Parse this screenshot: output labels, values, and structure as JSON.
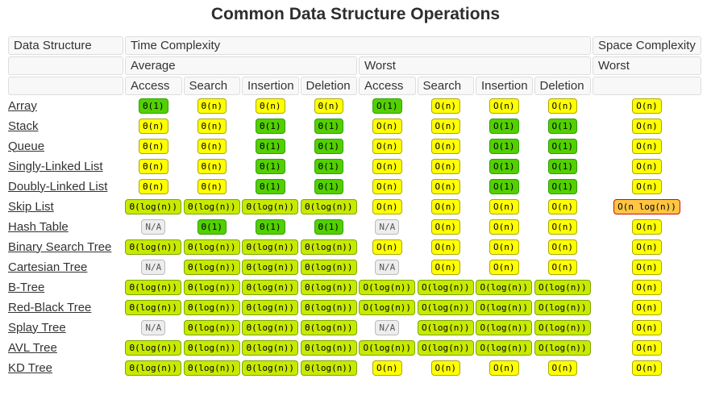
{
  "title": "Common Data Structure Operations",
  "header": {
    "data_structure": "Data Structure",
    "time_complexity": "Time Complexity",
    "space_complexity": "Space Complexity",
    "average": "Average",
    "worst": "Worst",
    "space_worst": "Worst",
    "ops": [
      "Access",
      "Search",
      "Insertion",
      "Deletion"
    ]
  },
  "badge_styles": {
    "green": {
      "bg": "#53d000",
      "border": "#2f9e00",
      "text_color": "#000000"
    },
    "yellowgreen": {
      "bg": "#c8ea00",
      "border": "#79a700",
      "text_color": "#000000"
    },
    "yellow": {
      "bg": "#ffff00",
      "border": "#aaaa00",
      "text_color": "#000000"
    },
    "orange": {
      "bg": "#ffc543",
      "border": "#cc1000",
      "text_color": "#000000"
    },
    "na": {
      "bg": "#ededed",
      "border": "#bbbbbb",
      "text_color": "#555555"
    }
  },
  "rows": [
    {
      "label": "Array",
      "cells": [
        {
          "text": "Θ(1)",
          "level": "green"
        },
        {
          "text": "Θ(n)",
          "level": "yellow"
        },
        {
          "text": "Θ(n)",
          "level": "yellow"
        },
        {
          "text": "Θ(n)",
          "level": "yellow"
        },
        {
          "text": "O(1)",
          "level": "green"
        },
        {
          "text": "O(n)",
          "level": "yellow"
        },
        {
          "text": "O(n)",
          "level": "yellow"
        },
        {
          "text": "O(n)",
          "level": "yellow"
        },
        {
          "text": "O(n)",
          "level": "yellow"
        }
      ]
    },
    {
      "label": "Stack",
      "cells": [
        {
          "text": "Θ(n)",
          "level": "yellow"
        },
        {
          "text": "Θ(n)",
          "level": "yellow"
        },
        {
          "text": "Θ(1)",
          "level": "green"
        },
        {
          "text": "Θ(1)",
          "level": "green"
        },
        {
          "text": "O(n)",
          "level": "yellow"
        },
        {
          "text": "O(n)",
          "level": "yellow"
        },
        {
          "text": "O(1)",
          "level": "green"
        },
        {
          "text": "O(1)",
          "level": "green"
        },
        {
          "text": "O(n)",
          "level": "yellow"
        }
      ]
    },
    {
      "label": "Queue",
      "cells": [
        {
          "text": "Θ(n)",
          "level": "yellow"
        },
        {
          "text": "Θ(n)",
          "level": "yellow"
        },
        {
          "text": "Θ(1)",
          "level": "green"
        },
        {
          "text": "Θ(1)",
          "level": "green"
        },
        {
          "text": "O(n)",
          "level": "yellow"
        },
        {
          "text": "O(n)",
          "level": "yellow"
        },
        {
          "text": "O(1)",
          "level": "green"
        },
        {
          "text": "O(1)",
          "level": "green"
        },
        {
          "text": "O(n)",
          "level": "yellow"
        }
      ]
    },
    {
      "label": "Singly-Linked List",
      "cells": [
        {
          "text": "Θ(n)",
          "level": "yellow"
        },
        {
          "text": "Θ(n)",
          "level": "yellow"
        },
        {
          "text": "Θ(1)",
          "level": "green"
        },
        {
          "text": "Θ(1)",
          "level": "green"
        },
        {
          "text": "O(n)",
          "level": "yellow"
        },
        {
          "text": "O(n)",
          "level": "yellow"
        },
        {
          "text": "O(1)",
          "level": "green"
        },
        {
          "text": "O(1)",
          "level": "green"
        },
        {
          "text": "O(n)",
          "level": "yellow"
        }
      ]
    },
    {
      "label": "Doubly-Linked List",
      "cells": [
        {
          "text": "Θ(n)",
          "level": "yellow"
        },
        {
          "text": "Θ(n)",
          "level": "yellow"
        },
        {
          "text": "Θ(1)",
          "level": "green"
        },
        {
          "text": "Θ(1)",
          "level": "green"
        },
        {
          "text": "O(n)",
          "level": "yellow"
        },
        {
          "text": "O(n)",
          "level": "yellow"
        },
        {
          "text": "O(1)",
          "level": "green"
        },
        {
          "text": "O(1)",
          "level": "green"
        },
        {
          "text": "O(n)",
          "level": "yellow"
        }
      ]
    },
    {
      "label": "Skip List",
      "cells": [
        {
          "text": "Θ(log(n))",
          "level": "yellowgreen"
        },
        {
          "text": "Θ(log(n))",
          "level": "yellowgreen"
        },
        {
          "text": "Θ(log(n))",
          "level": "yellowgreen"
        },
        {
          "text": "Θ(log(n))",
          "level": "yellowgreen"
        },
        {
          "text": "O(n)",
          "level": "yellow"
        },
        {
          "text": "O(n)",
          "level": "yellow"
        },
        {
          "text": "O(n)",
          "level": "yellow"
        },
        {
          "text": "O(n)",
          "level": "yellow"
        },
        {
          "text": "O(n log(n))",
          "level": "orange"
        }
      ]
    },
    {
      "label": "Hash Table",
      "cells": [
        {
          "text": "N/A",
          "level": "na"
        },
        {
          "text": "Θ(1)",
          "level": "green"
        },
        {
          "text": "Θ(1)",
          "level": "green"
        },
        {
          "text": "Θ(1)",
          "level": "green"
        },
        {
          "text": "N/A",
          "level": "na"
        },
        {
          "text": "O(n)",
          "level": "yellow"
        },
        {
          "text": "O(n)",
          "level": "yellow"
        },
        {
          "text": "O(n)",
          "level": "yellow"
        },
        {
          "text": "O(n)",
          "level": "yellow"
        }
      ]
    },
    {
      "label": "Binary Search Tree",
      "cells": [
        {
          "text": "Θ(log(n))",
          "level": "yellowgreen"
        },
        {
          "text": "Θ(log(n))",
          "level": "yellowgreen"
        },
        {
          "text": "Θ(log(n))",
          "level": "yellowgreen"
        },
        {
          "text": "Θ(log(n))",
          "level": "yellowgreen"
        },
        {
          "text": "O(n)",
          "level": "yellow"
        },
        {
          "text": "O(n)",
          "level": "yellow"
        },
        {
          "text": "O(n)",
          "level": "yellow"
        },
        {
          "text": "O(n)",
          "level": "yellow"
        },
        {
          "text": "O(n)",
          "level": "yellow"
        }
      ]
    },
    {
      "label": "Cartesian Tree",
      "cells": [
        {
          "text": "N/A",
          "level": "na"
        },
        {
          "text": "Θ(log(n))",
          "level": "yellowgreen"
        },
        {
          "text": "Θ(log(n))",
          "level": "yellowgreen"
        },
        {
          "text": "Θ(log(n))",
          "level": "yellowgreen"
        },
        {
          "text": "N/A",
          "level": "na"
        },
        {
          "text": "O(n)",
          "level": "yellow"
        },
        {
          "text": "O(n)",
          "level": "yellow"
        },
        {
          "text": "O(n)",
          "level": "yellow"
        },
        {
          "text": "O(n)",
          "level": "yellow"
        }
      ]
    },
    {
      "label": "B-Tree",
      "cells": [
        {
          "text": "Θ(log(n))",
          "level": "yellowgreen"
        },
        {
          "text": "Θ(log(n))",
          "level": "yellowgreen"
        },
        {
          "text": "Θ(log(n))",
          "level": "yellowgreen"
        },
        {
          "text": "Θ(log(n))",
          "level": "yellowgreen"
        },
        {
          "text": "O(log(n))",
          "level": "yellowgreen"
        },
        {
          "text": "O(log(n))",
          "level": "yellowgreen"
        },
        {
          "text": "O(log(n))",
          "level": "yellowgreen"
        },
        {
          "text": "O(log(n))",
          "level": "yellowgreen"
        },
        {
          "text": "O(n)",
          "level": "yellow"
        }
      ]
    },
    {
      "label": "Red-Black Tree",
      "cells": [
        {
          "text": "Θ(log(n))",
          "level": "yellowgreen"
        },
        {
          "text": "Θ(log(n))",
          "level": "yellowgreen"
        },
        {
          "text": "Θ(log(n))",
          "level": "yellowgreen"
        },
        {
          "text": "Θ(log(n))",
          "level": "yellowgreen"
        },
        {
          "text": "O(log(n))",
          "level": "yellowgreen"
        },
        {
          "text": "O(log(n))",
          "level": "yellowgreen"
        },
        {
          "text": "O(log(n))",
          "level": "yellowgreen"
        },
        {
          "text": "O(log(n))",
          "level": "yellowgreen"
        },
        {
          "text": "O(n)",
          "level": "yellow"
        }
      ]
    },
    {
      "label": "Splay Tree",
      "cells": [
        {
          "text": "N/A",
          "level": "na"
        },
        {
          "text": "Θ(log(n))",
          "level": "yellowgreen"
        },
        {
          "text": "Θ(log(n))",
          "level": "yellowgreen"
        },
        {
          "text": "Θ(log(n))",
          "level": "yellowgreen"
        },
        {
          "text": "N/A",
          "level": "na"
        },
        {
          "text": "O(log(n))",
          "level": "yellowgreen"
        },
        {
          "text": "O(log(n))",
          "level": "yellowgreen"
        },
        {
          "text": "O(log(n))",
          "level": "yellowgreen"
        },
        {
          "text": "O(n)",
          "level": "yellow"
        }
      ]
    },
    {
      "label": "AVL Tree",
      "cells": [
        {
          "text": "Θ(log(n))",
          "level": "yellowgreen"
        },
        {
          "text": "Θ(log(n))",
          "level": "yellowgreen"
        },
        {
          "text": "Θ(log(n))",
          "level": "yellowgreen"
        },
        {
          "text": "Θ(log(n))",
          "level": "yellowgreen"
        },
        {
          "text": "O(log(n))",
          "level": "yellowgreen"
        },
        {
          "text": "O(log(n))",
          "level": "yellowgreen"
        },
        {
          "text": "O(log(n))",
          "level": "yellowgreen"
        },
        {
          "text": "O(log(n))",
          "level": "yellowgreen"
        },
        {
          "text": "O(n)",
          "level": "yellow"
        }
      ]
    },
    {
      "label": "KD Tree",
      "cells": [
        {
          "text": "Θ(log(n))",
          "level": "yellowgreen"
        },
        {
          "text": "Θ(log(n))",
          "level": "yellowgreen"
        },
        {
          "text": "Θ(log(n))",
          "level": "yellowgreen"
        },
        {
          "text": "Θ(log(n))",
          "level": "yellowgreen"
        },
        {
          "text": "O(n)",
          "level": "yellow"
        },
        {
          "text": "O(n)",
          "level": "yellow"
        },
        {
          "text": "O(n)",
          "level": "yellow"
        },
        {
          "text": "O(n)",
          "level": "yellow"
        },
        {
          "text": "O(n)",
          "level": "yellow"
        }
      ]
    }
  ]
}
